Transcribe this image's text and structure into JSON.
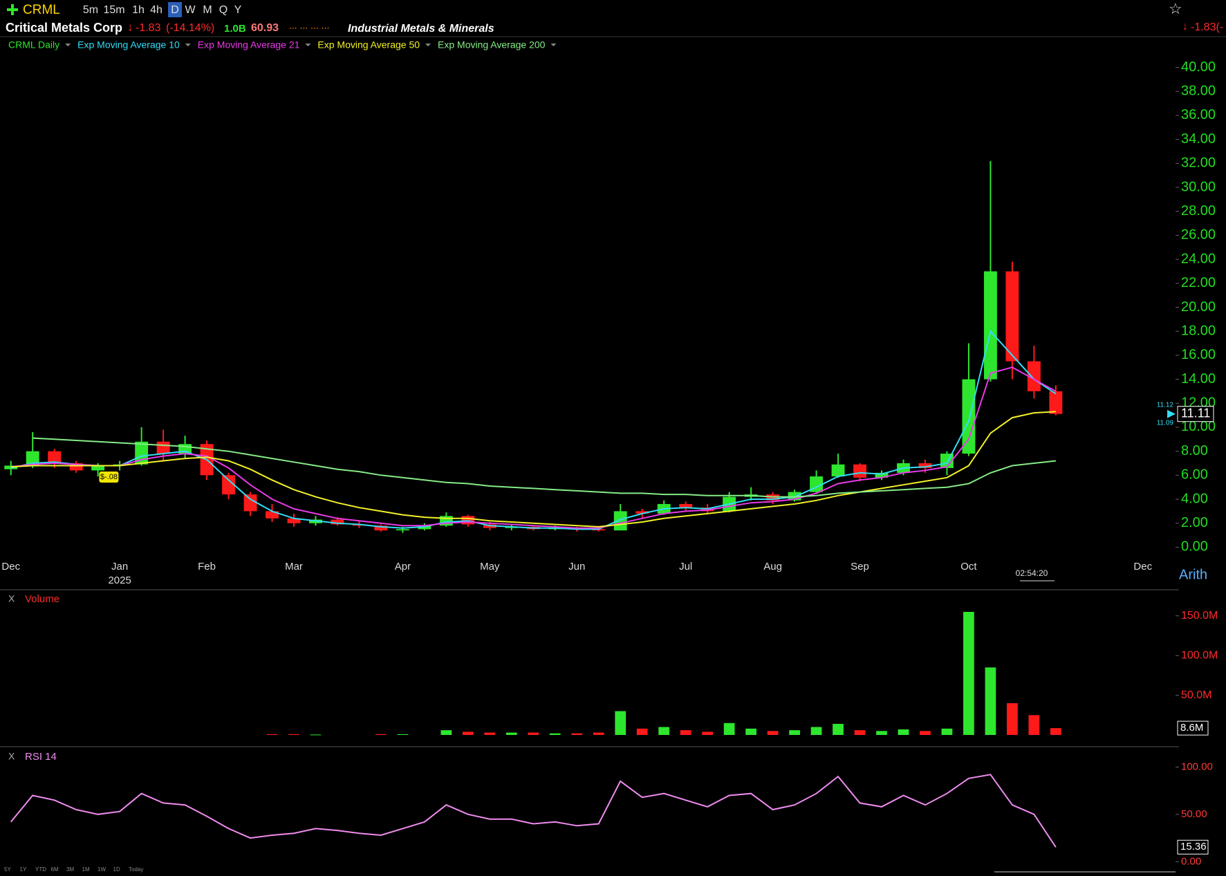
{
  "toolbar": {
    "symbol": "CRML",
    "intervals": [
      "5m",
      "15m",
      "1h",
      "4h",
      "D",
      "W",
      "M",
      "Q",
      "Y"
    ]
  },
  "header": {
    "name": "Critical Metals Corp",
    "change": "-1.83",
    "change_pct": "(-14.14%)",
    "market_cap": "1.0B",
    "stat": "60.93",
    "industry": "Industrial Metals & Minerals",
    "right_change": "-1.83(-"
  },
  "range_buttons": [
    "5Y",
    "1Y",
    "YTD",
    "6M",
    "3M",
    "1M",
    "1W",
    "1D",
    "Today"
  ],
  "time_label": "02:54:20",
  "chart_data": [
    {
      "type": "candlestick",
      "scale_label": "Arith",
      "year_label": "2025",
      "annotation": "$-.08",
      "bid": "11.12",
      "ask": "11.09",
      "grid": false,
      "categories": [
        "Dec",
        null,
        null,
        null,
        null,
        "Jan",
        null,
        null,
        null,
        "Feb",
        null,
        null,
        null,
        "Mar",
        null,
        null,
        null,
        null,
        "Apr",
        null,
        null,
        null,
        "May",
        null,
        null,
        null,
        "Jun",
        null,
        null,
        null,
        null,
        "Jul",
        null,
        null,
        null,
        "Aug",
        null,
        null,
        null,
        "Sep",
        null,
        null,
        null,
        null,
        "Oct",
        null,
        null,
        null,
        null,
        null,
        null,
        null,
        "Dec",
        null
      ],
      "ylim": [
        -2.8,
        41.3
      ],
      "yticks": [
        {
          "value": 0,
          "label": "0.00"
        },
        {
          "value": 2,
          "label": "2.00"
        },
        {
          "value": 4,
          "label": "4.00"
        },
        {
          "value": 6,
          "label": "6.00"
        },
        {
          "value": 8,
          "label": "8.00"
        },
        {
          "value": 10,
          "label": "10.00"
        },
        {
          "value": 12,
          "label": "12.00"
        },
        {
          "value": 14,
          "label": "14.00"
        },
        {
          "value": 16,
          "label": "16.00"
        },
        {
          "value": 18,
          "label": "18.00"
        },
        {
          "value": 20,
          "label": "20.00"
        },
        {
          "value": 22,
          "label": "22.00"
        },
        {
          "value": 24,
          "label": "24.00"
        },
        {
          "value": 26,
          "label": "26.00"
        },
        {
          "value": 28,
          "label": "28.00"
        },
        {
          "value": 30,
          "label": "30.00"
        },
        {
          "value": 32,
          "label": "32.00"
        },
        {
          "value": 34,
          "label": "34.00"
        },
        {
          "value": 36,
          "label": "36.00"
        },
        {
          "value": 38,
          "label": "38.00"
        },
        {
          "value": 40,
          "label": "40.00"
        }
      ],
      "series": [
        {
          "name": "CRML Daily",
          "color": "#2ee62e",
          "down_color": "#ff1a1a",
          "open": [
            6.5,
            6.8,
            8.0,
            7.0,
            6.4,
            6.8,
            6.9,
            8.8,
            7.8,
            8.6,
            6.0,
            4.4,
            3.0,
            2.4,
            2.0,
            2.3,
            1.9,
            1.8,
            1.4,
            1.5,
            1.8,
            2.6,
            1.9,
            1.6,
            1.7,
            1.5,
            1.6,
            1.5,
            1.4,
            3.0,
            2.8,
            3.6,
            3.3,
            3.0,
            4.2,
            4.4,
            3.9,
            4.6,
            5.9,
            6.9,
            5.8,
            6.2,
            7.0,
            6.6,
            7.8,
            14.0,
            23.0,
            15.5,
            13.0,
            null,
            null,
            null,
            null,
            null
          ],
          "high": [
            7.2,
            9.6,
            8.2,
            7.2,
            7.0,
            7.2,
            10.0,
            9.8,
            9.3,
            8.9,
            6.2,
            4.6,
            3.6,
            2.8,
            2.6,
            2.5,
            2.2,
            1.9,
            1.7,
            2.0,
            2.9,
            2.7,
            2.1,
            1.9,
            1.8,
            1.8,
            1.7,
            1.7,
            3.6,
            3.2,
            3.9,
            3.8,
            3.6,
            4.6,
            5.0,
            4.6,
            4.8,
            6.4,
            7.8,
            7.0,
            6.4,
            7.3,
            7.3,
            8.0,
            17.0,
            32.2,
            23.8,
            16.8,
            13.5,
            null,
            null,
            null,
            null,
            null
          ],
          "low": [
            6.0,
            6.6,
            6.6,
            6.2,
            5.9,
            6.4,
            6.8,
            7.2,
            7.4,
            5.6,
            4.0,
            2.6,
            2.1,
            1.7,
            1.8,
            1.8,
            1.6,
            1.3,
            1.2,
            1.4,
            1.7,
            1.7,
            1.4,
            1.4,
            1.4,
            1.4,
            1.3,
            1.3,
            1.4,
            2.4,
            2.7,
            3.0,
            2.8,
            2.9,
            3.9,
            3.6,
            3.8,
            4.5,
            5.8,
            5.5,
            5.6,
            6.0,
            6.2,
            6.0,
            7.6,
            13.8,
            14.0,
            12.4,
            11.0,
            null,
            null,
            null,
            null,
            null
          ],
          "close": [
            6.8,
            8.0,
            7.0,
            6.4,
            6.8,
            6.9,
            8.8,
            7.8,
            8.6,
            6.0,
            4.4,
            3.0,
            2.4,
            2.0,
            2.3,
            1.9,
            1.8,
            1.4,
            1.5,
            1.8,
            2.6,
            1.9,
            1.6,
            1.7,
            1.5,
            1.6,
            1.5,
            1.4,
            3.0,
            2.8,
            3.6,
            3.3,
            3.0,
            4.2,
            4.4,
            3.9,
            4.6,
            5.9,
            6.9,
            5.8,
            6.2,
            7.0,
            6.6,
            7.8,
            14.0,
            23.0,
            15.5,
            13.0,
            11.11,
            null,
            null,
            null,
            null,
            null
          ]
        },
        {
          "name": "Exp Moving Average 10",
          "color": "#33ddf5",
          "values": [
            6.6,
            7.0,
            7.1,
            6.9,
            6.8,
            6.8,
            7.6,
            7.8,
            8.0,
            7.3,
            5.6,
            4.0,
            3.0,
            2.4,
            2.2,
            2.0,
            1.9,
            1.7,
            1.6,
            1.7,
            2.1,
            2.2,
            1.8,
            1.7,
            1.6,
            1.6,
            1.5,
            1.5,
            2.3,
            2.8,
            3.2,
            3.3,
            3.2,
            3.6,
            4.0,
            4.0,
            4.2,
            5.0,
            5.9,
            6.2,
            6.1,
            6.6,
            6.7,
            7.0,
            10.5,
            18.0,
            16.0,
            14.0,
            12.8,
            null,
            null,
            null,
            null,
            null
          ]
        },
        {
          "name": "Exp Moving Average 21",
          "color": "#e83ae8",
          "values": [
            6.7,
            6.9,
            7.0,
            6.9,
            6.8,
            6.8,
            7.3,
            7.6,
            7.8,
            7.6,
            6.6,
            5.2,
            4.0,
            3.2,
            2.8,
            2.4,
            2.2,
            2.0,
            1.8,
            1.8,
            2.0,
            2.1,
            2.0,
            1.9,
            1.8,
            1.7,
            1.6,
            1.6,
            2.0,
            2.4,
            2.8,
            3.0,
            3.1,
            3.4,
            3.7,
            3.8,
            4.0,
            4.5,
            5.3,
            5.6,
            5.8,
            6.2,
            6.4,
            6.7,
            9.0,
            14.5,
            15.0,
            14.0,
            13.0,
            null,
            null,
            null,
            null,
            null
          ]
        },
        {
          "name": "Exp Moving Average 50",
          "color": "#f2f22a",
          "values": [
            6.7,
            6.8,
            6.8,
            6.8,
            6.8,
            6.8,
            7.0,
            7.2,
            7.4,
            7.5,
            7.2,
            6.5,
            5.6,
            4.8,
            4.2,
            3.7,
            3.3,
            3.0,
            2.7,
            2.5,
            2.4,
            2.4,
            2.2,
            2.1,
            2.0,
            1.9,
            1.8,
            1.7,
            1.9,
            2.1,
            2.4,
            2.6,
            2.8,
            3.0,
            3.2,
            3.4,
            3.6,
            3.9,
            4.3,
            4.6,
            4.9,
            5.2,
            5.5,
            5.8,
            6.8,
            9.5,
            10.8,
            11.2,
            11.3,
            null,
            null,
            null,
            null,
            null
          ]
        },
        {
          "name": "Exp Moving Average 200",
          "color": "#86ec86",
          "values": [
            null,
            9.1,
            9.0,
            8.9,
            8.8,
            8.7,
            8.6,
            8.5,
            8.4,
            8.2,
            8.0,
            7.7,
            7.4,
            7.1,
            6.8,
            6.5,
            6.3,
            6.0,
            5.8,
            5.6,
            5.4,
            5.3,
            5.1,
            5.0,
            4.9,
            4.8,
            4.7,
            4.6,
            4.5,
            4.5,
            4.4,
            4.4,
            4.3,
            4.3,
            4.3,
            4.2,
            4.2,
            4.3,
            4.5,
            4.6,
            4.7,
            4.8,
            4.9,
            5.0,
            5.3,
            6.2,
            6.8,
            7.0,
            7.2,
            null,
            null,
            null,
            null,
            null
          ]
        }
      ]
    },
    {
      "type": "bar",
      "name": "Volume",
      "ylim": [
        0,
        175
      ],
      "yticks": [
        {
          "value": 50,
          "label": "50.0M"
        },
        {
          "value": 100,
          "label": "100.0M"
        },
        {
          "value": 150,
          "label": "150.0M"
        }
      ],
      "values": [
        null,
        null,
        null,
        null,
        null,
        null,
        null,
        null,
        null,
        null,
        null,
        null,
        1,
        1,
        0.5,
        null,
        null,
        1,
        1,
        null,
        6,
        4,
        3,
        3,
        3,
        2,
        2,
        3,
        30,
        8,
        10,
        6,
        4,
        15,
        8,
        5,
        6,
        10,
        14,
        6,
        5,
        7,
        5,
        8,
        155,
        85,
        40,
        25,
        8.6,
        null,
        null,
        null,
        null,
        null
      ],
      "value_labels": [
        null,
        null,
        null,
        null,
        null,
        null,
        null,
        null,
        null,
        null,
        null,
        null,
        null,
        null,
        null,
        null,
        null,
        null,
        null,
        null,
        null,
        null,
        null,
        null,
        null,
        null,
        null,
        null,
        null,
        null,
        null,
        null,
        null,
        null,
        null,
        null,
        null,
        null,
        null,
        null,
        null,
        null,
        null,
        null,
        null,
        null,
        null,
        null,
        "8.6M",
        null,
        null,
        null,
        null,
        null
      ]
    },
    {
      "type": "line",
      "name": "RSI 14",
      "color": "#f08cf0",
      "ylim": [
        -10,
        120
      ],
      "yticks": [
        {
          "value": 0,
          "label": "0.00"
        },
        {
          "value": 50,
          "label": "50.00"
        },
        {
          "value": 100,
          "label": "100.00"
        }
      ],
      "values": [
        42,
        70,
        65,
        55,
        50,
        53,
        72,
        62,
        60,
        48,
        35,
        25,
        28,
        30,
        35,
        33,
        30,
        28,
        35,
        42,
        60,
        50,
        45,
        45,
        40,
        42,
        38,
        40,
        85,
        68,
        72,
        65,
        58,
        70,
        72,
        55,
        60,
        72,
        90,
        62,
        58,
        70,
        60,
        72,
        88,
        92,
        60,
        50,
        15.36,
        null,
        null,
        null,
        null,
        null
      ]
    }
  ]
}
